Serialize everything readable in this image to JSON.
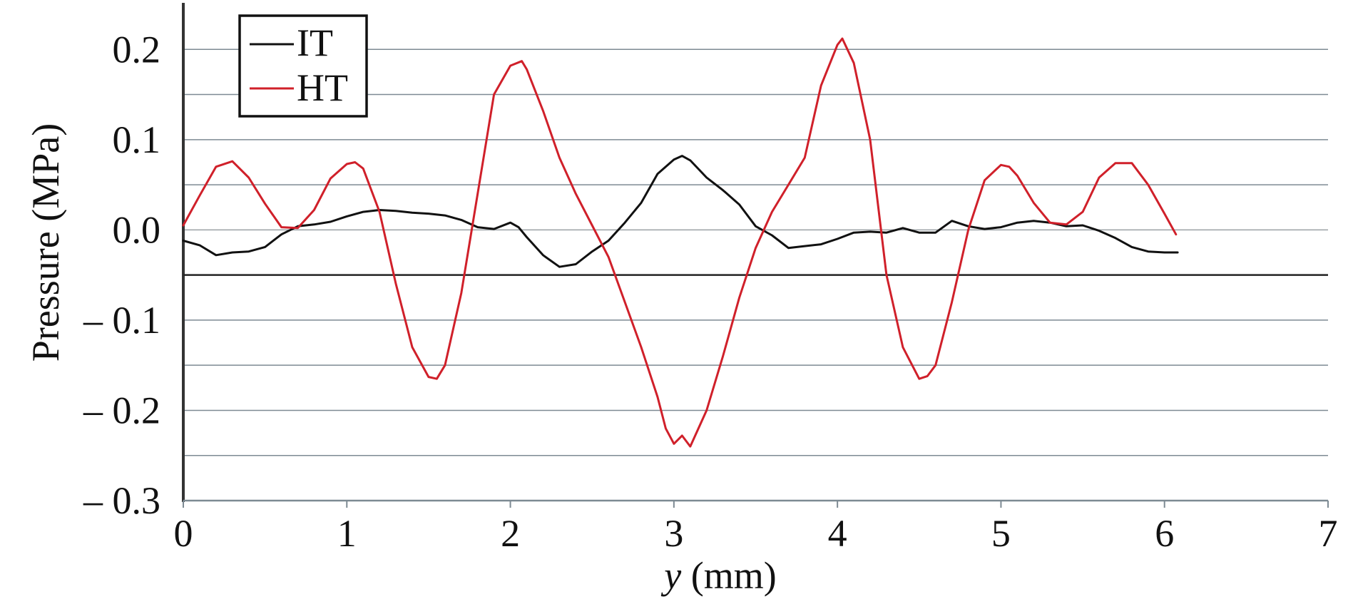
{
  "chart_data": {
    "type": "line",
    "xlabel": "y (mm)",
    "xlabel_var": "y",
    "xlabel_unit": " (mm)",
    "ylabel": "Pressure (MPa)",
    "xlim": [
      0,
      7
    ],
    "ylim": [
      -0.3,
      0.25
    ],
    "x_ticks": [
      0,
      1,
      2,
      3,
      4,
      5,
      6,
      7
    ],
    "x_tick_labels": [
      "0",
      "1",
      "2",
      "3",
      "4",
      "5",
      "6",
      "7"
    ],
    "y_ticks": [
      0.2,
      0.1,
      0.0,
      -0.1,
      -0.2,
      -0.3
    ],
    "y_tick_labels": [
      "0.2",
      "0.1",
      "0.0",
      "– 0.1",
      "– 0.2",
      "– 0.3"
    ],
    "grid": true,
    "legend_position": "top-left",
    "series": [
      {
        "name": "IT",
        "color": "#111111",
        "x": [
          0.0,
          0.1,
          0.2,
          0.3,
          0.4,
          0.5,
          0.6,
          0.7,
          0.8,
          0.9,
          1.0,
          1.1,
          1.2,
          1.3,
          1.4,
          1.5,
          1.6,
          1.7,
          1.8,
          1.9,
          2.0,
          2.05,
          2.1,
          2.2,
          2.3,
          2.4,
          2.5,
          2.6,
          2.7,
          2.8,
          2.9,
          3.0,
          3.05,
          3.1,
          3.2,
          3.3,
          3.4,
          3.5,
          3.6,
          3.7,
          3.8,
          3.9,
          4.0,
          4.1,
          4.2,
          4.3,
          4.4,
          4.5,
          4.6,
          4.7,
          4.8,
          4.9,
          5.0,
          5.1,
          5.2,
          5.3,
          5.4,
          5.5,
          5.6,
          5.7,
          5.8,
          5.9,
          6.0,
          6.08
        ],
        "y": [
          -0.012,
          -0.017,
          -0.028,
          -0.025,
          -0.024,
          -0.019,
          -0.005,
          0.004,
          0.006,
          0.009,
          0.015,
          0.02,
          0.022,
          0.021,
          0.019,
          0.018,
          0.016,
          0.011,
          0.003,
          0.001,
          0.008,
          0.003,
          -0.008,
          -0.028,
          -0.041,
          -0.038,
          -0.024,
          -0.012,
          0.008,
          0.03,
          0.062,
          0.078,
          0.082,
          0.077,
          0.058,
          0.044,
          0.028,
          0.004,
          -0.006,
          -0.02,
          -0.018,
          -0.016,
          -0.01,
          -0.003,
          -0.002,
          -0.003,
          0.002,
          -0.003,
          -0.003,
          0.01,
          0.004,
          0.001,
          0.003,
          0.008,
          0.01,
          0.008,
          0.004,
          0.005,
          -0.001,
          -0.009,
          -0.019,
          -0.024,
          -0.025,
          -0.025
        ]
      },
      {
        "name": "HT",
        "color": "#d0202a",
        "x": [
          0.0,
          0.1,
          0.2,
          0.3,
          0.4,
          0.5,
          0.6,
          0.7,
          0.8,
          0.9,
          1.0,
          1.05,
          1.1,
          1.2,
          1.3,
          1.4,
          1.5,
          1.55,
          1.6,
          1.7,
          1.8,
          1.9,
          2.0,
          2.07,
          2.1,
          2.2,
          2.3,
          2.4,
          2.5,
          2.6,
          2.7,
          2.8,
          2.9,
          2.95,
          3.0,
          3.05,
          3.1,
          3.2,
          3.3,
          3.4,
          3.5,
          3.6,
          3.7,
          3.8,
          3.9,
          4.0,
          4.03,
          4.1,
          4.2,
          4.3,
          4.4,
          4.5,
          4.55,
          4.6,
          4.7,
          4.8,
          4.9,
          5.0,
          5.05,
          5.1,
          5.2,
          5.3,
          5.4,
          5.5,
          5.6,
          5.7,
          5.8,
          5.9,
          6.0,
          6.07
        ],
        "y": [
          0.005,
          0.038,
          0.07,
          0.076,
          0.058,
          0.029,
          0.003,
          0.002,
          0.022,
          0.057,
          0.073,
          0.075,
          0.068,
          0.02,
          -0.06,
          -0.13,
          -0.163,
          -0.165,
          -0.15,
          -0.07,
          0.04,
          0.15,
          0.182,
          0.187,
          0.178,
          0.132,
          0.08,
          0.04,
          0.005,
          -0.03,
          -0.08,
          -0.13,
          -0.185,
          -0.22,
          -0.237,
          -0.228,
          -0.24,
          -0.2,
          -0.14,
          -0.075,
          -0.02,
          0.02,
          0.05,
          0.08,
          0.16,
          0.205,
          0.212,
          0.185,
          0.1,
          -0.05,
          -0.13,
          -0.165,
          -0.162,
          -0.15,
          -0.08,
          0.0,
          0.055,
          0.072,
          0.07,
          0.06,
          0.03,
          0.008,
          0.006,
          0.02,
          0.058,
          0.074,
          0.074,
          0.05,
          0.018,
          -0.005
        ]
      }
    ]
  }
}
